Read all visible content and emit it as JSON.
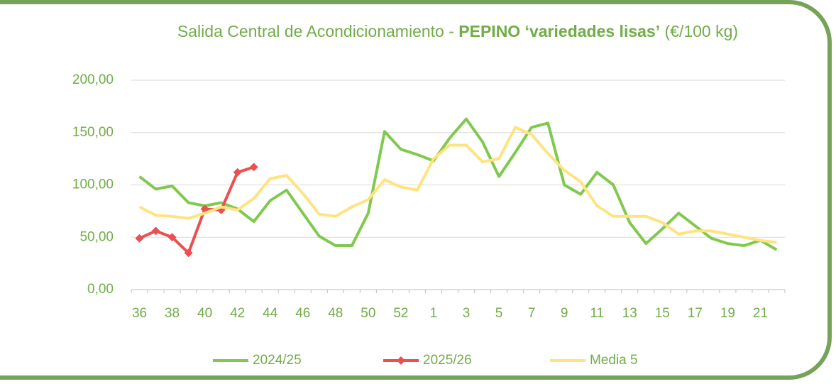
{
  "chart_data": {
    "type": "line",
    "title": [
      {
        "text": "Salida Central de Acondicionamiento - ",
        "bold": false
      },
      {
        "text": "PEPINO ‘variedades lisas’",
        "bold": true
      },
      {
        "text": " (€/100 kg)",
        "bold": false
      }
    ],
    "categories": [
      "36",
      null,
      "38",
      null,
      "40",
      null,
      "42",
      null,
      "44",
      null,
      "46",
      null,
      "48",
      null,
      "50",
      null,
      "52",
      null,
      "1",
      null,
      "3",
      null,
      "5",
      null,
      "7",
      null,
      "9",
      null,
      "11",
      null,
      "13",
      null,
      "15",
      null,
      "17",
      null,
      "19",
      null,
      "21",
      null
    ],
    "series": [
      {
        "name": "2024/25",
        "color": "#80c94e",
        "marker": null,
        "values": [
          108,
          96,
          99,
          83,
          80,
          83,
          77,
          65,
          85,
          95,
          73,
          51,
          42,
          42,
          73,
          151,
          134,
          129,
          123,
          145,
          163,
          141,
          108,
          131,
          155,
          159,
          100,
          91,
          112,
          100,
          64,
          44,
          58,
          73,
          61,
          49,
          44,
          42,
          47,
          38
        ]
      },
      {
        "name": "2025/26",
        "color": "#ec4f50",
        "marker": "diamond",
        "values": [
          49,
          56,
          50,
          35,
          77,
          76,
          112,
          117,
          null,
          null,
          null,
          null,
          null,
          null,
          null,
          null,
          null,
          null,
          null,
          null,
          null,
          null,
          null,
          null,
          null,
          null,
          null,
          null,
          null,
          null,
          null,
          null,
          null,
          null,
          null,
          null,
          null,
          null,
          null,
          null
        ]
      },
      {
        "name": "Media 5",
        "color": "#ffe380",
        "marker": null,
        "values": [
          79,
          71,
          70,
          68,
          73,
          79,
          76,
          87,
          106,
          109,
          92,
          72,
          70,
          79,
          86,
          105,
          98,
          95,
          125,
          138,
          138,
          122,
          125,
          155,
          148,
          130,
          114,
          103,
          80,
          70,
          70,
          70,
          64,
          53,
          56,
          56,
          53,
          50,
          47,
          45
        ]
      }
    ],
    "ylim": [
      0,
      200
    ],
    "yticks": [
      {
        "value": 0,
        "label": "0,00"
      },
      {
        "value": 50,
        "label": "50,00"
      },
      {
        "value": 100,
        "label": "100,00"
      },
      {
        "value": 150,
        "label": "150,00"
      },
      {
        "value": 200,
        "label": "200,00"
      }
    ],
    "grid": true,
    "legend": "bottom"
  }
}
